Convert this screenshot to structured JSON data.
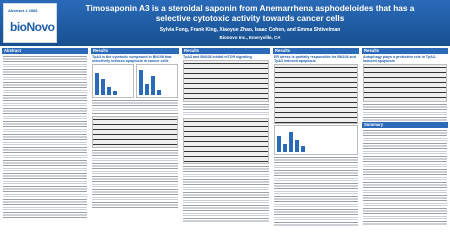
{
  "header": {
    "abstract_number": "Abstract # 2886",
    "logo": "bioNovo",
    "title": "Timosaponin A3 is a steroidal saponin from Anemarrhena asphodeloides that has a selective cytotoxic activity towards cancer cells",
    "authors": "Sylvia Fong, Frank King, Xiaoyue Zhao, Isaac Cohen, and Emma Shtivelman",
    "affiliation": "Bionovo Inc., Emeryville, CA"
  },
  "columns": [
    {
      "heading": "Abstract"
    },
    {
      "heading": "Results",
      "subheading": "TpA3 is the cytotoxic compound in BN108 that selectively induces apoptosis in cancer cells"
    },
    {
      "heading": "Results",
      "subheading": "TpA3 and BN108 inhibit mTOR signaling"
    },
    {
      "heading": "Results",
      "subheading": "ER stress is partially responsible for BN108 and TpA3 induced apoptosis"
    },
    {
      "heading": "Results",
      "subheading": "Autophagy plays a protective role in TpA3-induced apoptosis"
    }
  ],
  "summary_heading": "Summary"
}
